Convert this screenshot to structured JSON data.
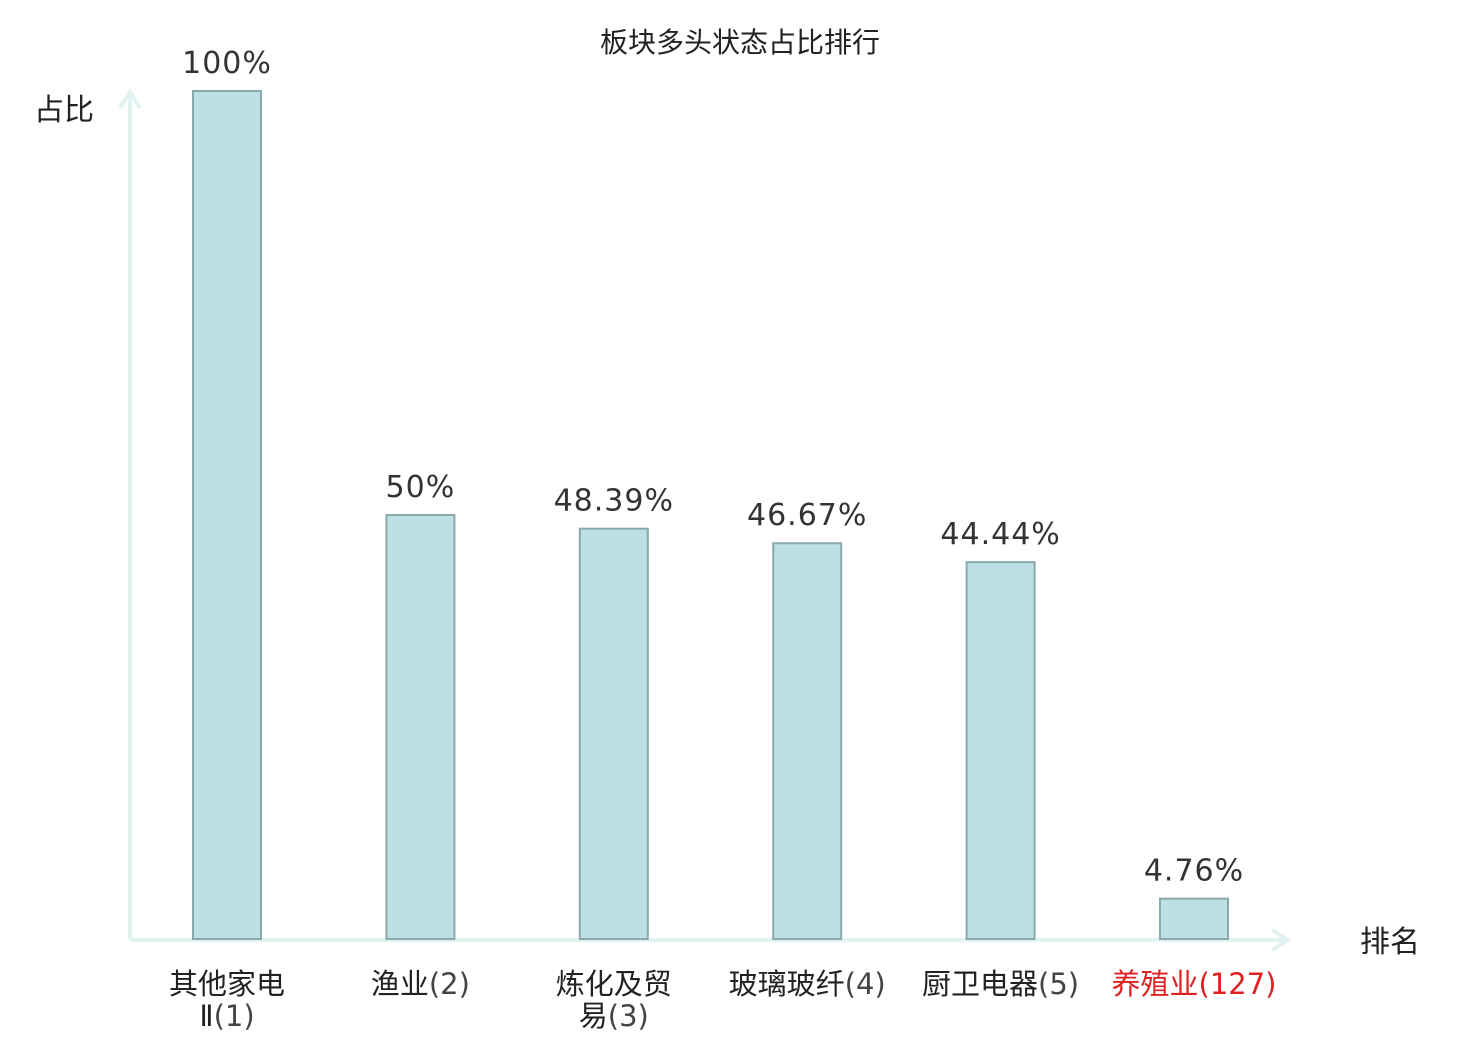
{
  "chart_data": {
    "type": "bar",
    "title": "板块多头状态占比排行",
    "ylabel": "占比",
    "xlabel": "排名",
    "ylim": [
      0,
      100
    ],
    "grid": false,
    "categories": [
      {
        "name_lines": [
          "其他家电",
          "Ⅱ"
        ],
        "rank": "(1)",
        "value": 100,
        "value_label": "100%",
        "highlight": false
      },
      {
        "name_lines": [
          "渔业"
        ],
        "rank": "(2)",
        "value": 50,
        "value_label": "50%",
        "highlight": false
      },
      {
        "name_lines": [
          "炼化及贸",
          "易"
        ],
        "rank": "(3)",
        "value": 48.39,
        "value_label": "48.39%",
        "highlight": false
      },
      {
        "name_lines": [
          "玻璃玻纤"
        ],
        "rank": "(4)",
        "value": 46.67,
        "value_label": "46.67%",
        "highlight": false
      },
      {
        "name_lines": [
          "厨卫电器"
        ],
        "rank": "(5)",
        "value": 44.44,
        "value_label": "44.44%",
        "highlight": false
      },
      {
        "name_lines": [
          "养殖业"
        ],
        "rank": "(127)",
        "value": 4.76,
        "value_label": "4.76%",
        "highlight": true
      }
    ],
    "colors": {
      "bar_fill": "#bce0e3",
      "bar_stroke": "#8aa9ad",
      "axis": "#e2f2f0",
      "highlight_text": "#e02020"
    }
  }
}
